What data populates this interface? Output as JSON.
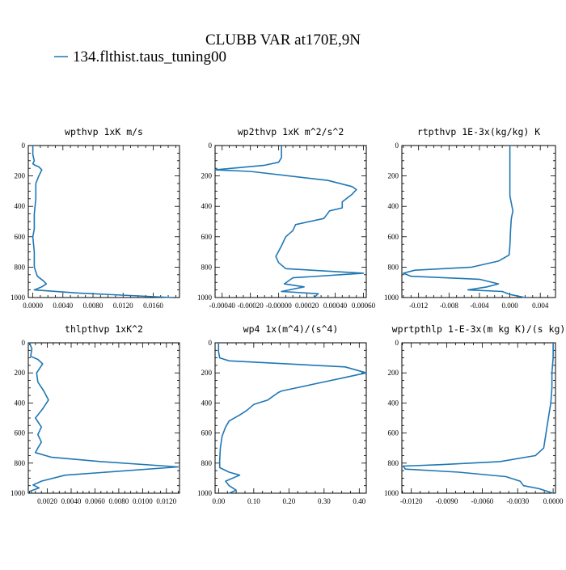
{
  "page": {
    "title": "CLUBB VAR at170E,9N",
    "legend_label": "134.flthist.taus_tuning00",
    "series_color": "#1f77b4"
  },
  "chart_data": [
    {
      "type": "line",
      "title": "wpthvp   1xK m/s",
      "xlim": [
        -0.0006,
        0.0195
      ],
      "ylim": [
        1000,
        0
      ],
      "xticks": [
        0.0,
        0.004,
        0.008,
        0.012,
        0.016
      ],
      "xtick_labels": [
        "0.0000",
        "0.0040",
        "0.0080",
        "0.0120",
        "0.0160"
      ],
      "yticks": [
        0,
        200,
        400,
        600,
        800,
        1000
      ],
      "ytick_labels": [
        "0",
        "200",
        "400",
        "600",
        "800",
        "1000"
      ],
      "series": [
        {
          "x": [
            0.0,
            0.0,
            0.0002,
            0.0,
            0.0003,
            0.0008,
            0.0012,
            0.0008,
            0.0004,
            0.0004,
            0.0002,
            0.0002,
            0.0,
            0.0002,
            0.0002,
            0.0006,
            0.0014,
            0.0018,
            0.0012,
            0.0002,
            0.006,
            0.0185
          ],
          "y": [
            0,
            60,
            100,
            120,
            130,
            140,
            160,
            200,
            250,
            350,
            450,
            550,
            600,
            700,
            800,
            860,
            890,
            910,
            930,
            950,
            970,
            1000
          ]
        }
      ]
    },
    {
      "type": "line",
      "title": "wp2thvp   1xK m^2/s^2",
      "xlim": [
        -0.00045,
        0.00062
      ],
      "ylim": [
        1000,
        0
      ],
      "xticks": [
        -0.0004,
        -0.0002,
        0.0,
        0.0002,
        0.0004,
        0.0006
      ],
      "xtick_labels": [
        "-0.00040",
        "-0.00020",
        "-0.00000",
        "0.00020",
        "0.00040",
        "0.00060"
      ],
      "yticks": [
        0,
        200,
        400,
        600,
        800,
        1000
      ],
      "ytick_labels": [
        "0",
        "200",
        "400",
        "600",
        "800",
        "1000"
      ],
      "series": [
        {
          "x": [
            2e-05,
            2e-05,
            0.0,
            -0.0001,
            -0.00045,
            -0.0002,
            0.00035,
            0.00052,
            0.00055,
            0.00052,
            0.00045,
            0.00045,
            0.00036,
            0.00032,
            0.00012,
            0.0001,
            5e-05,
            2e-05,
            -2e-05,
            0.0,
            5e-05,
            0.0006,
            0.0001,
            4e-05,
            0.00018,
            2e-05,
            0.00028,
            0.00025
          ],
          "y": [
            0,
            80,
            110,
            130,
            160,
            170,
            230,
            270,
            290,
            320,
            370,
            410,
            430,
            480,
            520,
            560,
            600,
            660,
            730,
            770,
            810,
            840,
            870,
            910,
            930,
            960,
            975,
            1000
          ]
        }
      ]
    },
    {
      "type": "line",
      "title": "rtpthvp   1E-3x(kg/kg) K",
      "xlim": [
        -0.0142,
        0.006
      ],
      "ylim": [
        1000,
        0
      ],
      "xticks": [
        -0.012,
        -0.008,
        -0.004,
        0.0,
        0.004
      ],
      "xtick_labels": [
        "-0.012",
        "-0.008",
        "-0.004",
        "0.000",
        "0.004"
      ],
      "yticks": [
        0,
        200,
        400,
        600,
        800,
        1000
      ],
      "ytick_labels": [
        "0",
        "200",
        "400",
        "600",
        "800",
        "1000"
      ],
      "series": [
        {
          "x": [
            0.0,
            0.0,
            0.0,
            0.0,
            0.0002,
            0.0004,
            0.0002,
            0.0001,
            0.0,
            -0.0001,
            -0.0015,
            -0.005,
            -0.0125,
            -0.014,
            -0.013,
            -0.004,
            -0.0015,
            -0.003,
            -0.0055,
            -0.001,
            0.0,
            0.002
          ],
          "y": [
            0,
            100,
            200,
            330,
            380,
            430,
            480,
            550,
            660,
            720,
            760,
            800,
            820,
            840,
            860,
            880,
            910,
            930,
            950,
            960,
            980,
            1000
          ]
        }
      ]
    },
    {
      "type": "line",
      "title": "thlpthvp   1xK^2",
      "xlim": [
        0.0004,
        0.0131
      ],
      "ylim": [
        1000,
        0
      ],
      "xticks": [
        0.002,
        0.004,
        0.006,
        0.008,
        0.01,
        0.012
      ],
      "xtick_labels": [
        "0.0020",
        "0.0040",
        "0.0060",
        "0.0080",
        "0.0100",
        "0.0120"
      ],
      "yticks": [
        0,
        200,
        400,
        600,
        800,
        1000
      ],
      "ytick_labels": [
        "0",
        "200",
        "400",
        "600",
        "800",
        "1000"
      ],
      "series": [
        {
          "x": [
            0.0005,
            0.0007,
            0.0006,
            0.0012,
            0.0016,
            0.0011,
            0.0012,
            0.0017,
            0.0021,
            0.0016,
            0.001,
            0.0015,
            0.0012,
            0.0015,
            0.0012,
            0.001,
            0.0023,
            0.0065,
            0.013,
            0.0035,
            0.0015,
            0.0008,
            0.0013,
            0.0006,
            0.0007
          ],
          "y": [
            0,
            40,
            90,
            110,
            140,
            200,
            260,
            320,
            380,
            440,
            500,
            560,
            610,
            660,
            700,
            730,
            760,
            790,
            825,
            880,
            920,
            945,
            965,
            985,
            1000
          ]
        }
      ]
    },
    {
      "type": "line",
      "title": "wp4   1x(m^4)/(s^4)",
      "xlim": [
        -0.01,
        0.42
      ],
      "ylim": [
        1000,
        0
      ],
      "xticks": [
        0.0,
        0.1,
        0.2,
        0.3,
        0.4
      ],
      "xtick_labels": [
        "0.00",
        "0.10",
        "0.20",
        "0.30",
        "0.40"
      ],
      "yticks": [
        0,
        200,
        400,
        600,
        800,
        1000
      ],
      "ytick_labels": [
        "0",
        "200",
        "400",
        "600",
        "800",
        "1000"
      ],
      "series": [
        {
          "x": [
            0.0,
            0.0,
            0.003,
            0.03,
            0.36,
            0.42,
            0.36,
            0.3,
            0.18,
            0.17,
            0.14,
            0.1,
            0.08,
            0.06,
            0.03,
            0.02,
            0.01,
            0.005,
            0.003,
            0.003,
            0.03,
            0.06,
            0.02,
            0.03,
            0.05,
            0.03
          ],
          "y": [
            0,
            60,
            100,
            120,
            160,
            200,
            230,
            260,
            320,
            330,
            380,
            410,
            450,
            480,
            520,
            560,
            620,
            700,
            780,
            830,
            860,
            880,
            920,
            950,
            980,
            1000
          ]
        }
      ]
    },
    {
      "type": "line",
      "title": "wprtpthlp   1-E-3x(m kg K)/(s kg)",
      "xlim": [
        -0.0128,
        0.0002
      ],
      "ylim": [
        1000,
        0
      ],
      "xticks": [
        -0.012,
        -0.009,
        -0.006,
        -0.003,
        0.0
      ],
      "xtick_labels": [
        "-0.0120",
        "-0.0090",
        "-0.0060",
        "-0.0030",
        "0.0000"
      ],
      "yticks": [
        0,
        200,
        400,
        600,
        800,
        1000
      ],
      "ytick_labels": [
        "0",
        "200",
        "400",
        "600",
        "800",
        "1000"
      ],
      "series": [
        {
          "x": [
            0.0,
            0.0,
            -0.0001,
            -0.0001,
            -0.0002,
            -0.0004,
            -0.0006,
            -0.0008,
            -0.0015,
            -0.0045,
            -0.0095,
            -0.0127,
            -0.0125,
            -0.008,
            -0.004,
            -0.0028,
            -0.0025,
            -0.0012,
            0.0
          ],
          "y": [
            0,
            100,
            200,
            300,
            400,
            500,
            600,
            700,
            750,
            790,
            810,
            820,
            840,
            860,
            890,
            920,
            950,
            970,
            1000
          ]
        }
      ]
    }
  ]
}
